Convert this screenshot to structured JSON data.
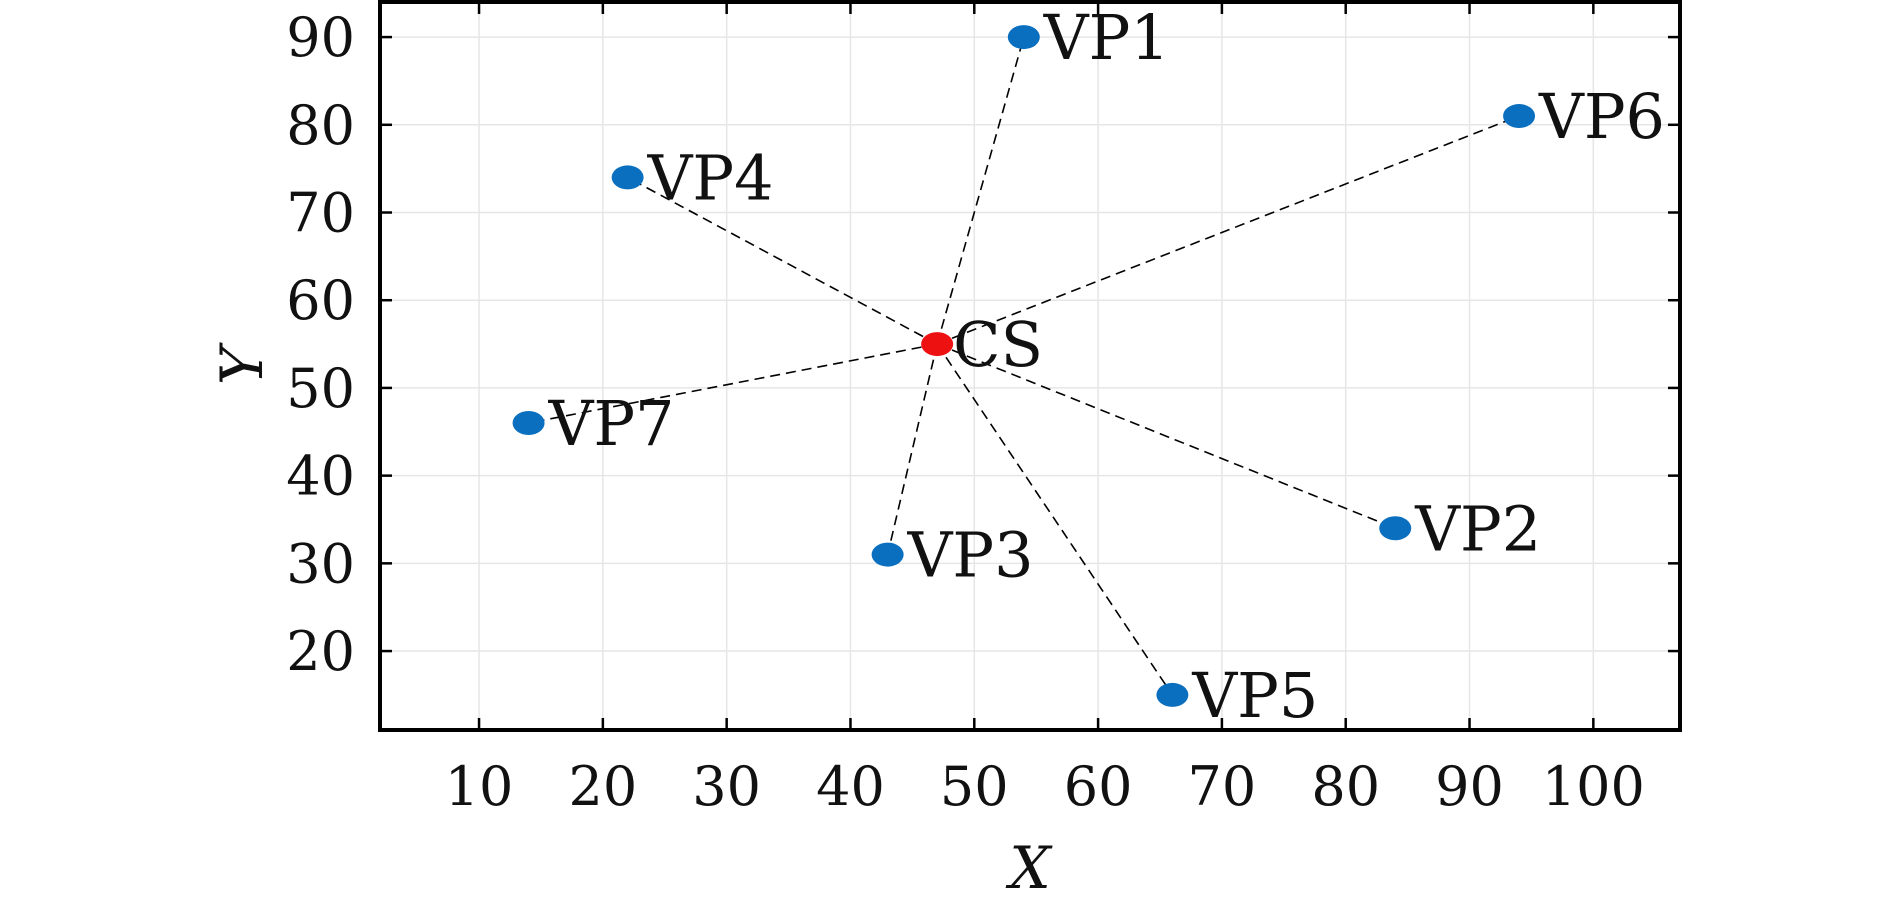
{
  "chart_data": {
    "type": "scatter",
    "title": "",
    "xlabel": "X",
    "ylabel": "Y",
    "xlim": [
      2,
      107
    ],
    "ylim": [
      11,
      94
    ],
    "xticks": [
      10,
      20,
      30,
      40,
      50,
      60,
      70,
      80,
      90,
      100
    ],
    "yticks": [
      20,
      30,
      40,
      50,
      60,
      70,
      80,
      90
    ],
    "grid": true,
    "center": {
      "name": "CS",
      "x": 47,
      "y": 55,
      "color": "#ee1111"
    },
    "point_color": "#0b6fbf",
    "points": [
      {
        "name": "VP1",
        "x": 54,
        "y": 90
      },
      {
        "name": "VP2",
        "x": 84,
        "y": 34
      },
      {
        "name": "VP3",
        "x": 43,
        "y": 31
      },
      {
        "name": "VP4",
        "x": 22,
        "y": 74
      },
      {
        "name": "VP5",
        "x": 66,
        "y": 15
      },
      {
        "name": "VP6",
        "x": 94,
        "y": 81
      },
      {
        "name": "VP7",
        "x": 14,
        "y": 46
      }
    ]
  }
}
